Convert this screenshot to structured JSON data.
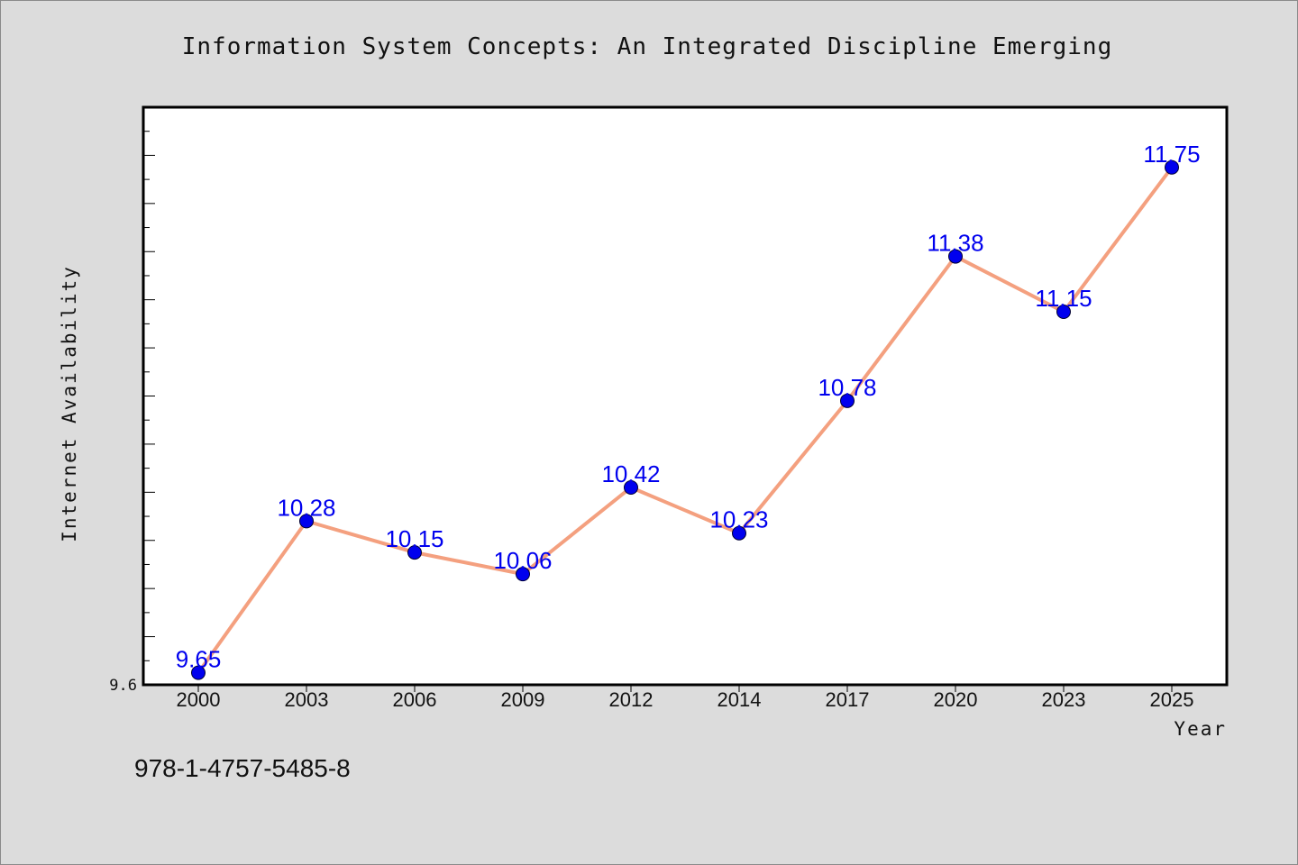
{
  "chart_data": {
    "type": "line",
    "title": "Information System Concepts: An Integrated Discipline Emerging",
    "xlabel": "Year",
    "ylabel": "Internet Availability",
    "categories": [
      "2000",
      "2003",
      "2006",
      "2009",
      "2012",
      "2014",
      "2017",
      "2020",
      "2023",
      "2025"
    ],
    "values": [
      9.65,
      10.28,
      10.15,
      10.06,
      10.42,
      10.23,
      10.78,
      11.38,
      11.15,
      11.75
    ],
    "data_labels": [
      "9.65",
      "10.28",
      "10.15",
      "10.06",
      "10.42",
      "10.23",
      "10.78",
      "11.38",
      "11.15",
      "11.75"
    ],
    "ylim": [
      9.6,
      12.0
    ],
    "y_tick_labels": [
      "9.6"
    ],
    "grid": false,
    "line_color": "#f4a07f",
    "marker_color": "#0000ee",
    "label_color": "#0000ee"
  },
  "footer": {
    "isbn": "978-1-4757-5485-8"
  }
}
